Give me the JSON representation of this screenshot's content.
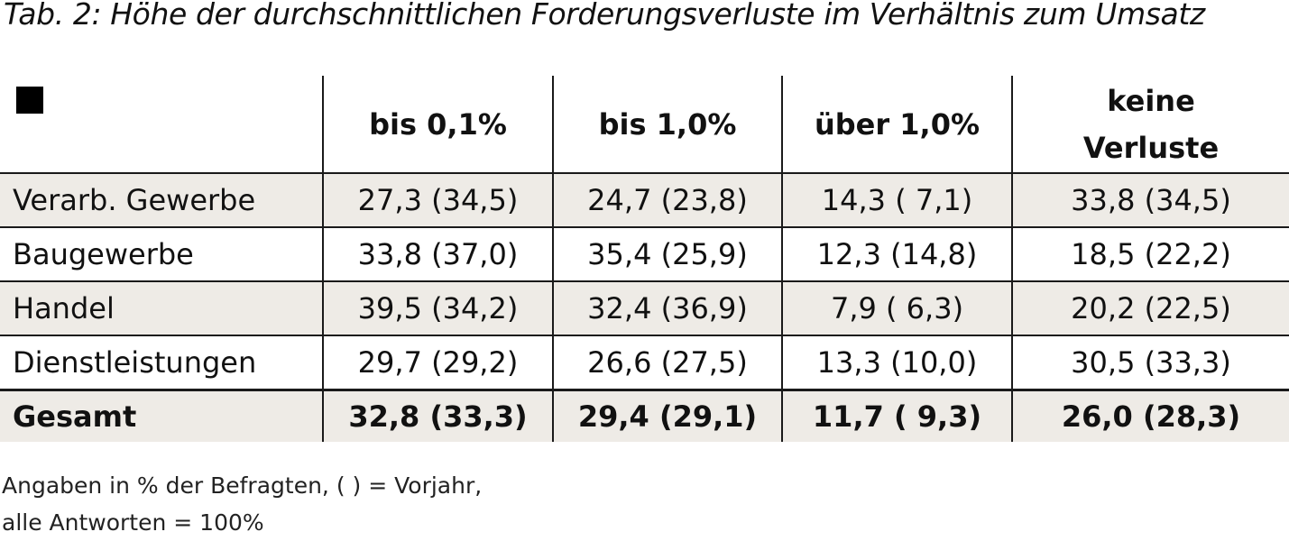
{
  "title": "Tab. 2: Höhe der durchschnittlichen Forderungsverluste im Verhältnis zum Umsatz",
  "corner_icon": "black-square-icon",
  "columns": [
    "bis 0,1%",
    "bis 1,0%",
    "über 1,0%",
    "keine Verluste"
  ],
  "rows": [
    {
      "label": "Verarb. Gewerbe",
      "values": [
        "27,3 (34,5)",
        "24,7 (23,8)",
        "14,3 (  7,1)",
        "33,8 (34,5)"
      ]
    },
    {
      "label": "Baugewerbe",
      "values": [
        "33,8 (37,0)",
        "35,4 (25,9)",
        "12,3 (14,8)",
        "18,5 (22,2)"
      ]
    },
    {
      "label": "Handel",
      "values": [
        "39,5 (34,2)",
        "32,4 (36,9)",
        "  7,9 (  6,3)",
        "20,2 (22,5)"
      ]
    },
    {
      "label": "Dienstleistungen",
      "values": [
        "29,7 (29,2)",
        "26,6 (27,5)",
        "13,3 (10,0)",
        "30,5 (33,3)"
      ]
    }
  ],
  "total": {
    "label": "Gesamt",
    "values": [
      "32,8 (33,3)",
      "29,4 (29,1)",
      "11,7 (  9,3)",
      "26,0 (28,3)"
    ]
  },
  "footnote": {
    "line1": "Angaben in % der Befragten, ( ) = Vorjahr,",
    "line2": "alle Antworten = 100%"
  },
  "colors": {
    "row_shade": "#eeebe6",
    "grid": "#1a1a1a"
  }
}
